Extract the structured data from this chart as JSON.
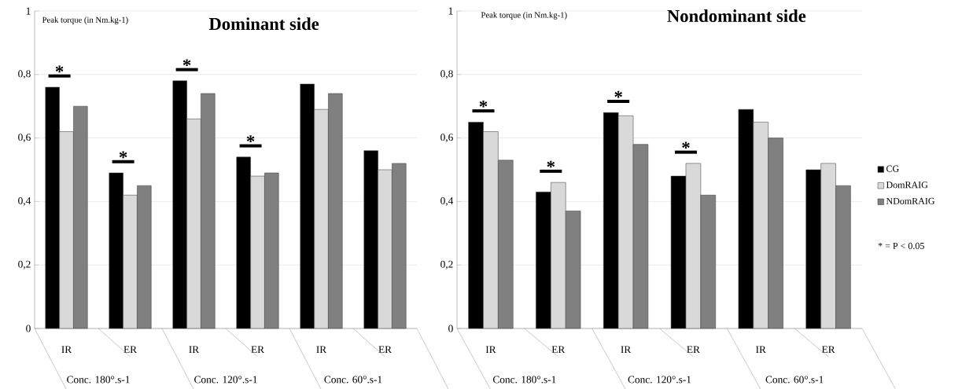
{
  "chart_data": [
    {
      "type": "bar",
      "title": "Dominant side",
      "ylabel": "Peak torque (in Nm.kg-1)",
      "categories": [
        "IR",
        "ER",
        "IR",
        "ER",
        "IR",
        "ER"
      ],
      "series": [
        {
          "color": "#000000",
          "values": [
            0.76,
            0.49,
            0.78,
            0.54,
            0.77,
            0.56
          ]
        },
        {
          "color": "#d9d9d9",
          "values": [
            0.62,
            0.42,
            0.66,
            0.48,
            0.69,
            0.5
          ]
        },
        {
          "color": "#808080",
          "values": [
            0.7,
            0.45,
            0.74,
            0.49,
            0.74,
            0.52
          ]
        }
      ],
      "ylim": [
        0,
        1
      ],
      "yticks": [
        0,
        {
          "value": 0.2,
          "label": "0,2"
        },
        {
          "value": 0.4,
          "label": "0,4"
        },
        {
          "value": 0.6,
          "label": "0,6"
        },
        {
          "value": 0.8,
          "label": "0,8"
        },
        1
      ],
      "grid": "y",
      "annotations": [
        "Conc. 180°.s-1",
        "Conc. 120°.s-1",
        "Conc. 60°.s-1",
        "*",
        "*",
        "*",
        "*"
      ]
    },
    {
      "type": "bar",
      "title": "Nondominant side",
      "ylabel": "Peak torque (in Nm.kg-1)",
      "categories": [
        "IR",
        "ER",
        "IR",
        "ER",
        "IR",
        "ER"
      ],
      "series": [
        {
          "name": "CG",
          "color": "#000000",
          "values": [
            0.65,
            0.43,
            0.68,
            0.48,
            0.69,
            0.5
          ]
        },
        {
          "name": "DomRAIG",
          "color": "#d9d9d9",
          "values": [
            0.62,
            0.46,
            0.67,
            0.52,
            0.65,
            0.52
          ]
        },
        {
          "name": "NDomRAIG",
          "color": "#808080",
          "values": [
            0.53,
            0.37,
            0.58,
            0.42,
            0.6,
            0.45
          ]
        }
      ],
      "ylim": [
        0,
        1
      ],
      "yticks": [
        0,
        {
          "value": 0.2,
          "label": "0,2"
        },
        {
          "value": 0.4,
          "label": "0,4"
        },
        {
          "value": 0.6,
          "label": "0,6"
        },
        {
          "value": 0.8,
          "label": "0,8"
        },
        1
      ],
      "grid": "y",
      "legend": "right",
      "annotations": [
        "Conc. 180°.s-1",
        "Conc. 120°.s-1",
        "Conc. 60°.s-1",
        "*",
        "*",
        "*",
        "*",
        "* = P < 0.05"
      ]
    }
  ]
}
